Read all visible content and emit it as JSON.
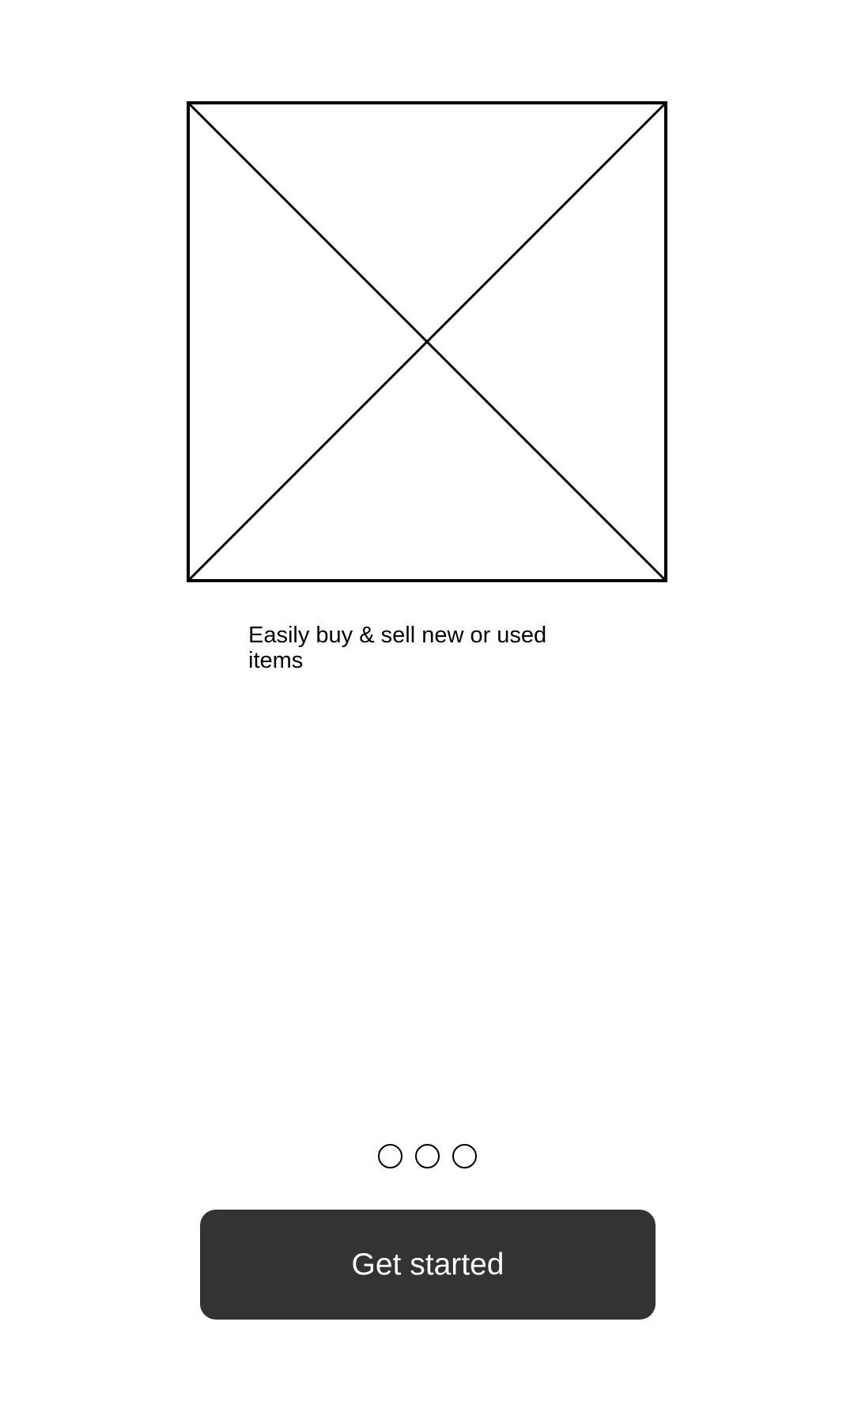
{
  "onboarding": {
    "hero_image": "image-placeholder-icon",
    "tagline": "Easily buy & sell new or used items",
    "pager": {
      "total": 3,
      "dots": [
        "page-1",
        "page-2",
        "page-3"
      ]
    },
    "cta_label": "Get started"
  },
  "colors": {
    "background": "#ffffff",
    "outline": "#000000",
    "button_bg": "#333333",
    "button_text": "#ffffff"
  }
}
